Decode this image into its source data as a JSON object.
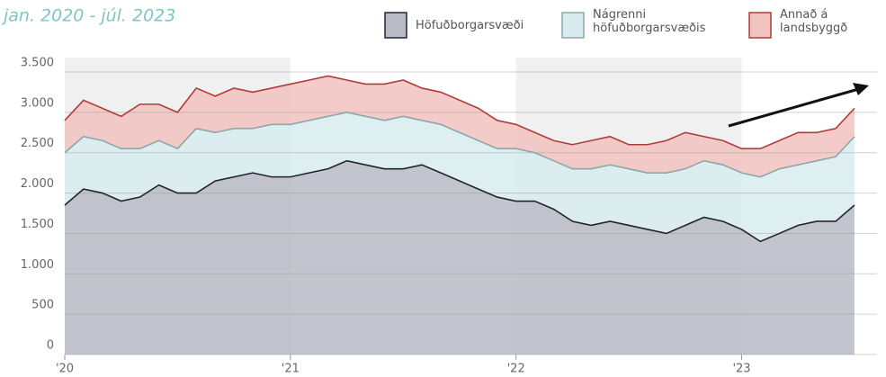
{
  "chart_data": {
    "type": "stacked-area",
    "subtitle": "jan. 2020 - júl. 2023",
    "x": [
      2020,
      2020.083,
      2020.167,
      2020.25,
      2020.333,
      2020.417,
      2020.5,
      2020.583,
      2020.667,
      2020.75,
      2020.833,
      2020.917,
      2021,
      2021.083,
      2021.167,
      2021.25,
      2021.333,
      2021.417,
      2021.5,
      2021.583,
      2021.667,
      2021.75,
      2021.833,
      2021.917,
      2022,
      2022.083,
      2022.167,
      2022.25,
      2022.333,
      2022.417,
      2022.5,
      2022.583,
      2022.667,
      2022.75,
      2022.833,
      2022.917,
      2023,
      2023.083,
      2023.167,
      2023.25,
      2023.333,
      2023.417,
      2023.5
    ],
    "series": [
      {
        "name": "Höfuðborgarsvæði",
        "color": "#b9bbc6",
        "line_color": "#23232e",
        "values": [
          1850,
          2050,
          2000,
          1900,
          1950,
          2100,
          2000,
          2000,
          2150,
          2200,
          2250,
          2200,
          2200,
          2250,
          2300,
          2400,
          2350,
          2300,
          2300,
          2350,
          2250,
          2150,
          2050,
          1950,
          1900,
          1900,
          1800,
          1650,
          1600,
          1650,
          1600,
          1550,
          1500,
          1600,
          1700,
          1650,
          1550,
          1400,
          1500,
          1600,
          1650,
          1650,
          1850
        ]
      },
      {
        "name": "Nágrenni höfuðborgarsvæðis",
        "color": "#d8ecef",
        "line_color": "#8fa6a8",
        "values": [
          650,
          650,
          650,
          650,
          600,
          550,
          550,
          800,
          600,
          600,
          550,
          650,
          650,
          650,
          650,
          600,
          600,
          600,
          650,
          550,
          600,
          600,
          600,
          600,
          650,
          600,
          600,
          650,
          700,
          700,
          700,
          700,
          750,
          700,
          700,
          700,
          700,
          800,
          800,
          750,
          750,
          800,
          850
        ]
      },
      {
        "name": "Annað á landsbyggð",
        "color": "#f1c3c1",
        "line_color": "#b23a3a",
        "values": [
          400,
          450,
          400,
          400,
          550,
          450,
          450,
          500,
          450,
          500,
          450,
          450,
          500,
          500,
          500,
          400,
          400,
          450,
          450,
          400,
          400,
          400,
          400,
          350,
          300,
          250,
          250,
          300,
          350,
          350,
          300,
          350,
          400,
          450,
          300,
          300,
          300,
          350,
          350,
          400,
          350,
          350,
          350
        ]
      }
    ],
    "xlim": [
      2020,
      2023.6
    ],
    "xticks": [
      {
        "value": 2020,
        "label": "'20"
      },
      {
        "value": 2021,
        "label": "'21"
      },
      {
        "value": 2022,
        "label": "'22"
      },
      {
        "value": 2023,
        "label": "'23"
      }
    ],
    "ylim": [
      0,
      3500
    ],
    "yticks": [
      0,
      500,
      {
        "value": 1000,
        "label": "1.000"
      },
      {
        "value": 1500,
        "label": "1.500"
      },
      {
        "value": 2000,
        "label": "2.000"
      },
      {
        "value": 2500,
        "label": "2.500"
      },
      {
        "value": 3000,
        "label": "3.000"
      },
      {
        "value": 3500,
        "label": "3.500"
      }
    ],
    "grid": true
  }
}
